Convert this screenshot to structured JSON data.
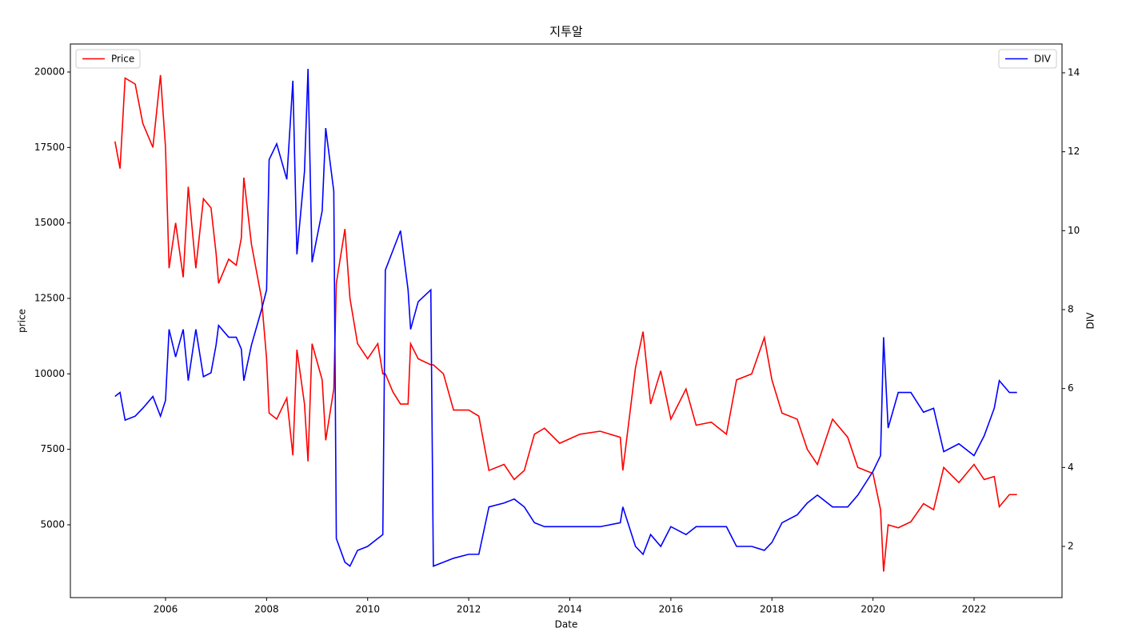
{
  "chart_data": {
    "type": "line",
    "title": "지투알",
    "xlabel": "Date",
    "ylabel": "price",
    "y2label": "DIV",
    "x": [
      2005.0,
      2005.1,
      2005.2,
      2005.4,
      2005.55,
      2005.75,
      2005.9,
      2006.0,
      2006.07,
      2006.2,
      2006.35,
      2006.45,
      2006.6,
      2006.75,
      2006.9,
      2007.0,
      2007.05,
      2007.25,
      2007.4,
      2007.5,
      2007.55,
      2007.7,
      2007.9,
      2008.0,
      2008.05,
      2008.2,
      2008.4,
      2008.52,
      2008.6,
      2008.75,
      2008.82,
      2008.9,
      2009.1,
      2009.17,
      2009.33,
      2009.38,
      2009.55,
      2009.65,
      2009.8,
      2010.0,
      2010.2,
      2010.3,
      2010.35,
      2010.5,
      2010.65,
      2010.8,
      2010.85,
      2011.0,
      2011.25,
      2011.3,
      2011.5,
      2011.7,
      2012.0,
      2012.2,
      2012.4,
      2012.7,
      2012.9,
      2013.1,
      2013.3,
      2013.5,
      2013.8,
      2014.2,
      2014.6,
      2015.0,
      2015.05,
      2015.3,
      2015.45,
      2015.6,
      2015.8,
      2016.0,
      2016.3,
      2016.5,
      2016.8,
      2017.1,
      2017.3,
      2017.6,
      2017.85,
      2018.0,
      2018.2,
      2018.5,
      2018.7,
      2018.9,
      2019.2,
      2019.5,
      2019.7,
      2020.0,
      2020.15,
      2020.21,
      2020.3,
      2020.5,
      2020.75,
      2021.0,
      2021.2,
      2021.4,
      2021.7,
      2022.0,
      2022.2,
      2022.4,
      2022.5,
      2022.7,
      2022.85
    ],
    "series": [
      {
        "name": "Price",
        "color": "#ff0000",
        "values": [
          17700,
          16800,
          19800,
          19600,
          18300,
          17500,
          19900,
          17500,
          13500,
          15000,
          13200,
          16200,
          13500,
          15800,
          15500,
          14000,
          13000,
          13800,
          13600,
          14500,
          16500,
          14300,
          12500,
          10500,
          8700,
          8500,
          9200,
          7300,
          10800,
          9000,
          7100,
          11000,
          9800,
          7800,
          9500,
          13000,
          14800,
          12500,
          11000,
          10500,
          11000,
          10000,
          10000,
          9400,
          9000,
          9000,
          11000,
          10500,
          10300,
          10300,
          10000,
          8800,
          8800,
          8600,
          6800,
          7000,
          6500,
          6800,
          8000,
          8200,
          7700,
          8000,
          8100,
          7900,
          6800,
          10200,
          11400,
          9000,
          10100,
          8500,
          9500,
          8300,
          8400,
          8000,
          9800,
          10000,
          11200,
          9800,
          8700,
          8500,
          7500,
          7000,
          8500,
          7900,
          6900,
          6700,
          5500,
          3450,
          5000,
          4900,
          5100,
          5700,
          5500,
          6900,
          6400,
          7000,
          6500,
          6600,
          5600,
          6000,
          6000
        ]
      },
      {
        "name": "DIV",
        "color": "#0000ff",
        "axis": "y2",
        "values": [
          5.8,
          5.9,
          5.2,
          5.3,
          5.5,
          5.8,
          5.3,
          5.7,
          7.5,
          6.8,
          7.5,
          6.2,
          7.5,
          6.3,
          6.4,
          7.1,
          7.6,
          7.3,
          7.3,
          7.0,
          6.2,
          7.1,
          8.0,
          8.5,
          11.8,
          12.2,
          11.3,
          13.8,
          9.4,
          11.5,
          14.1,
          9.2,
          10.5,
          12.6,
          11.0,
          2.2,
          1.6,
          1.5,
          1.9,
          2.0,
          2.2,
          2.3,
          9.0,
          9.5,
          10.0,
          8.5,
          7.5,
          8.2,
          8.5,
          1.5,
          1.6,
          1.7,
          1.8,
          1.8,
          3.0,
          3.1,
          3.2,
          3.0,
          2.6,
          2.5,
          2.5,
          2.5,
          2.5,
          2.6,
          3.0,
          2.0,
          1.8,
          2.3,
          2.0,
          2.5,
          2.3,
          2.5,
          2.5,
          2.5,
          2.0,
          2.0,
          1.9,
          2.1,
          2.6,
          2.8,
          3.1,
          3.3,
          3.0,
          3.0,
          3.3,
          3.9,
          4.3,
          7.3,
          5.0,
          5.9,
          5.9,
          5.4,
          5.5,
          4.4,
          4.6,
          4.3,
          4.8,
          5.5,
          6.2,
          5.9,
          5.9
        ]
      }
    ],
    "xlim": [
      2004.117,
      2023.741
    ],
    "xticks": [
      2006,
      2008,
      2010,
      2012,
      2014,
      2016,
      2018,
      2020,
      2022
    ],
    "ylim": [
      2588,
      20928
    ],
    "yticks": [
      5000,
      7500,
      10000,
      12500,
      15000,
      17500,
      20000
    ],
    "y2lim": [
      0.703,
      14.73
    ],
    "y2ticks": [
      2,
      4,
      6,
      8,
      10,
      12,
      14
    ],
    "legend": [
      "upper left",
      "upper right"
    ]
  }
}
